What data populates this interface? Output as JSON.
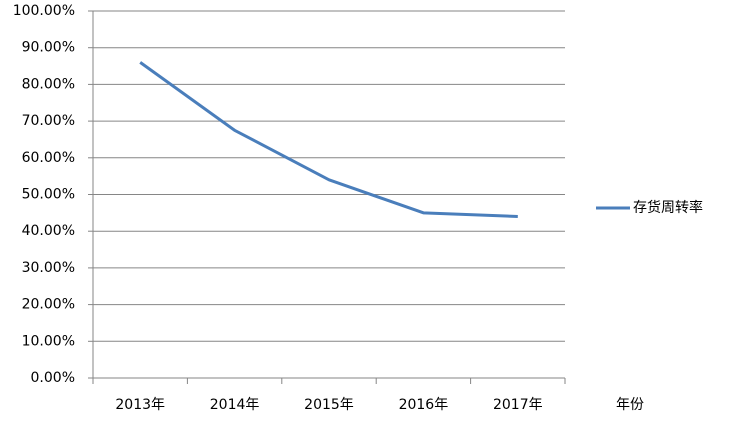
{
  "chart_data": {
    "type": "line",
    "categories": [
      "2013年",
      "2014年",
      "2015年",
      "2016年",
      "2017年"
    ],
    "x_label": "年份",
    "series": [
      {
        "name": "存货周转率",
        "color": "#4a7ebb",
        "values": [
          86,
          67.5,
          54,
          45,
          44
        ]
      }
    ],
    "ylim": [
      0,
      100
    ],
    "yticks": [
      {
        "value": 0,
        "label": "0.00%"
      },
      {
        "value": 10,
        "label": "10.00%"
      },
      {
        "value": 20,
        "label": "20.00%"
      },
      {
        "value": 30,
        "label": "30.00%"
      },
      {
        "value": 40,
        "label": "40.00%"
      },
      {
        "value": 50,
        "label": "50.00%"
      },
      {
        "value": 60,
        "label": "60.00%"
      },
      {
        "value": 70,
        "label": "70.00%"
      },
      {
        "value": 80,
        "label": "80.00%"
      },
      {
        "value": 90,
        "label": "90.00%"
      },
      {
        "value": 100,
        "label": "100.00%"
      }
    ],
    "grid": true,
    "legend": "right"
  }
}
